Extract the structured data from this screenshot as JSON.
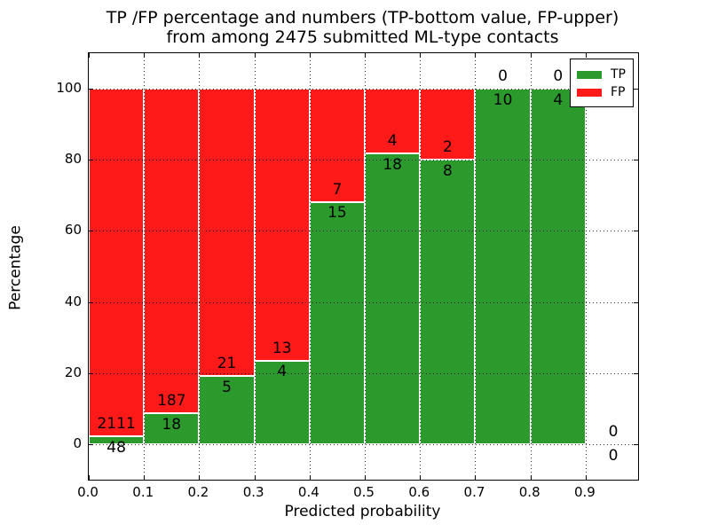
{
  "figure": {
    "title_line1": "TP /FP percentage and numbers (TP-bottom value, FP-upper)",
    "title_line2": "from among 2475 submitted ML-type contacts",
    "x_axis_label": "Predicted probability",
    "y_axis_label": "Percentage"
  },
  "legend": {
    "items": [
      {
        "label": "TP",
        "color": "#2B992B"
      },
      {
        "label": "FP",
        "color": "#FF1A1A"
      }
    ]
  },
  "chart_data": {
    "type": "bar",
    "subtype": "stacked-percentage",
    "title": "TP /FP percentage and numbers (TP-bottom value, FP-upper) from among 2475 submitted ML-type contacts",
    "xlabel": "Predicted probability",
    "ylabel": "Percentage",
    "total_contacts": 2475,
    "bin_width": 0.1,
    "categories": [
      "0.0-0.1",
      "0.1-0.2",
      "0.2-0.3",
      "0.3-0.4",
      "0.4-0.5",
      "0.5-0.6",
      "0.6-0.7",
      "0.7-0.8",
      "0.8-0.9",
      "0.9-1.0"
    ],
    "bin_starts": [
      0.0,
      0.1,
      0.2,
      0.3,
      0.4,
      0.5,
      0.6,
      0.7,
      0.8,
      0.9
    ],
    "series": [
      {
        "name": "TP",
        "color": "#2B992B",
        "counts": [
          48,
          18,
          5,
          4,
          15,
          18,
          8,
          10,
          4,
          0
        ]
      },
      {
        "name": "FP",
        "color": "#FF1A1A",
        "counts": [
          2111,
          187,
          21,
          13,
          7,
          4,
          2,
          0,
          0,
          0
        ]
      }
    ],
    "tp_percent": [
      2.22,
      8.78,
      19.23,
      23.53,
      68.18,
      81.82,
      80.0,
      100.0,
      100.0,
      0.0
    ],
    "x_ticks": {
      "values": [
        0.0,
        0.1,
        0.2,
        0.3,
        0.4,
        0.5,
        0.6,
        0.7,
        0.8,
        0.9
      ],
      "labels": [
        "0.0",
        "0.1",
        "0.2",
        "0.3",
        "0.4",
        "0.5",
        "0.6",
        "0.7",
        "0.8",
        "0.9"
      ]
    },
    "y_ticks": {
      "values": [
        0,
        20,
        40,
        60,
        80,
        100
      ],
      "labels": [
        "0",
        "20",
        "40",
        "60",
        "80",
        "100"
      ]
    },
    "xlim": [
      0.0,
      0.995
    ],
    "ylim": [
      -10,
      110
    ],
    "grid": {
      "style": "dotted",
      "color": "#000000"
    },
    "legend_position": "upper-right",
    "bar_edge_color": "#FFFFFF",
    "background": "#FFFFFF"
  }
}
